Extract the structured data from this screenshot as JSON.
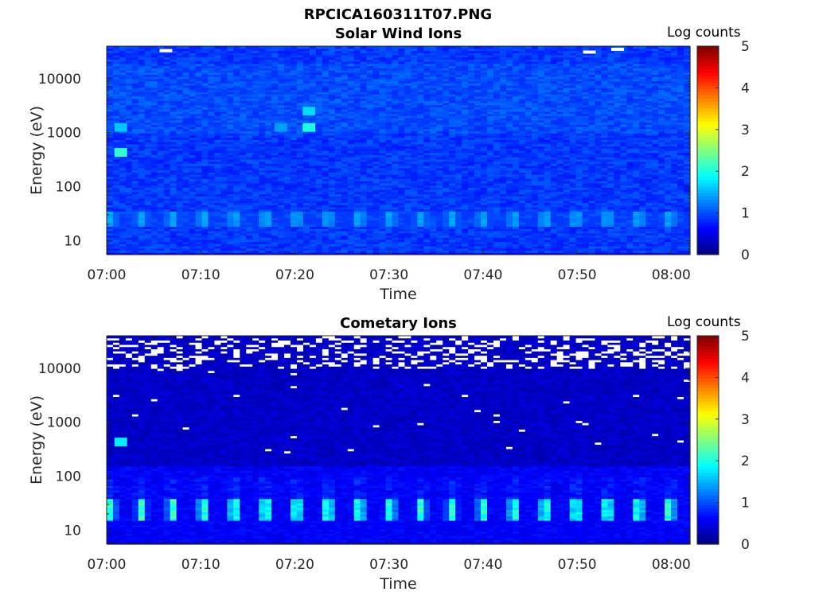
{
  "figure": {
    "filename_title": "RPCICA160311T07.PNG"
  },
  "colors": {
    "background": "#ffffff",
    "axis": "#262626",
    "colormap": "jet",
    "saturated": "#ffffff"
  },
  "chart_data": [
    {
      "type": "heatmap",
      "title": "Solar Wind Ions",
      "xlabel": "Time",
      "ylabel": "Energy (eV)",
      "x_ticks": [
        "07:00",
        "07:10",
        "07:20",
        "07:30",
        "07:40",
        "07:50",
        "08:00"
      ],
      "x_range": [
        "07:00",
        "08:02"
      ],
      "y_scale": "log",
      "y_ticks": [
        "10",
        "100",
        "1000",
        "10000"
      ],
      "y_range": [
        5.5,
        40000
      ],
      "colorbar": {
        "label": "Log counts",
        "ticks": [
          "0",
          "1",
          "2",
          "3",
          "4",
          "5"
        ],
        "range": [
          0,
          5
        ]
      },
      "features": {
        "background_level_log_counts": 0.9,
        "periodic_band_energy_eV": [
          18,
          35
        ],
        "periodic_band_peak_log_counts": 1.5,
        "sweep_period_minutes": 3.3,
        "hot_spots": [
          {
            "time": "07:01",
            "energy_eV": 430,
            "log_counts": 2.1
          },
          {
            "time": "07:01",
            "energy_eV": 1250,
            "log_counts": 1.6
          },
          {
            "time": "07:21",
            "energy_eV": 1250,
            "log_counts": 2.0
          },
          {
            "time": "07:21",
            "energy_eV": 2500,
            "log_counts": 1.7
          },
          {
            "time": "07:18",
            "energy_eV": 1250,
            "log_counts": 1.4
          }
        ],
        "saturated_cells": [
          {
            "time": "07:06",
            "energy_eV": 33000
          },
          {
            "time": "07:51",
            "energy_eV": 31000
          },
          {
            "time": "07:54",
            "energy_eV": 35000
          }
        ]
      }
    },
    {
      "type": "heatmap",
      "title": "Cometary Ions",
      "xlabel": "Time",
      "ylabel": "Energy (eV)",
      "x_ticks": [
        "07:00",
        "07:10",
        "07:20",
        "07:30",
        "07:40",
        "07:50",
        "08:00"
      ],
      "x_range": [
        "07:00",
        "08:02"
      ],
      "y_scale": "log",
      "y_ticks": [
        "10",
        "100",
        "1000",
        "10000"
      ],
      "y_range": [
        5.5,
        40000
      ],
      "colorbar": {
        "label": "Log counts",
        "ticks": [
          "0",
          "1",
          "2",
          "3",
          "4",
          "5"
        ],
        "range": [
          0,
          5
        ]
      },
      "features": {
        "background_level_log_counts": 0.35,
        "periodic_band_energy_eV": [
          15,
          40
        ],
        "periodic_band_peak_log_counts": 2.3,
        "sweep_period_minutes": 3.3,
        "hot_spots": [
          {
            "time": "07:01",
            "energy_eV": 430,
            "log_counts": 1.8
          }
        ],
        "saturated_energy_range_eV": [
          10000,
          40000
        ]
      }
    }
  ]
}
